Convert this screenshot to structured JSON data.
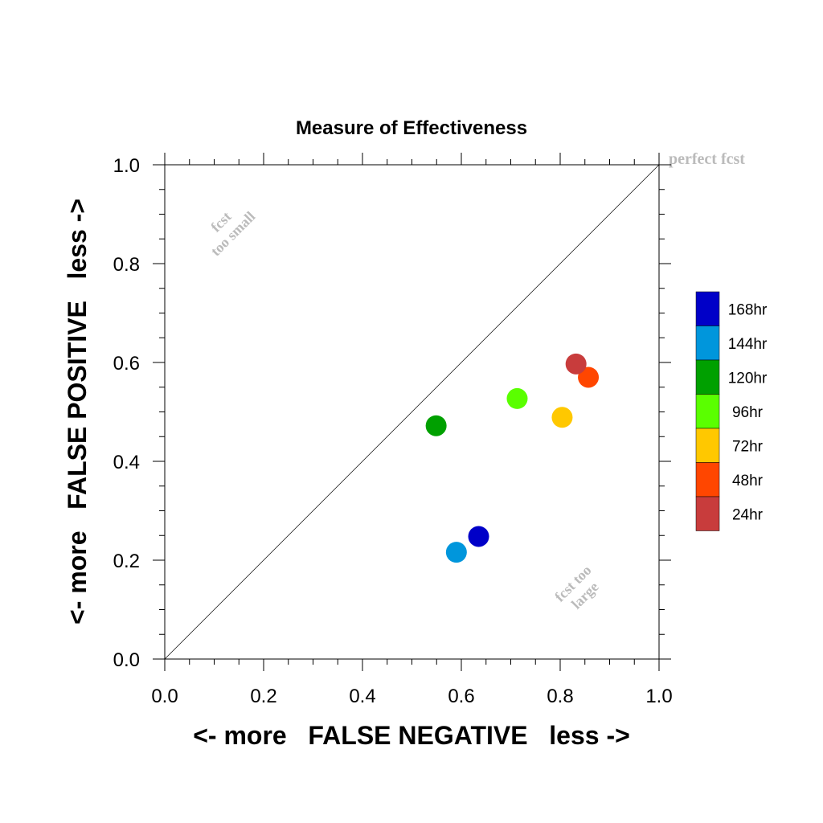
{
  "chart_data": {
    "type": "scatter",
    "title": "Measure of Effectiveness",
    "xlabel": "<- more   FALSE NEGATIVE   less ->",
    "ylabel": "<- more   FALSE POSITIVE   less ->",
    "xlim": [
      0.0,
      1.0
    ],
    "ylim": [
      0.0,
      1.0
    ],
    "x_ticks": [
      "0.0",
      "0.2",
      "0.4",
      "0.6",
      "0.8",
      "1.0"
    ],
    "y_ticks": [
      "0.0",
      "0.2",
      "0.4",
      "0.6",
      "0.8",
      "1.0"
    ],
    "grid": false,
    "diagonal_reference": true,
    "annotations": {
      "perfect": "perfect fcst",
      "too_small_1": "fcst",
      "too_small_2": "too small",
      "too_large_1": "fcst too",
      "too_large_2": "large"
    },
    "legend_position": "right",
    "series": [
      {
        "name": "168hr",
        "color": "#0000c8",
        "x": 0.635,
        "y": 0.248
      },
      {
        "name": "144hr",
        "color": "#0096dc",
        "x": 0.59,
        "y": 0.216
      },
      {
        "name": "120hr",
        "color": "#00a000",
        "x": 0.549,
        "y": 0.472
      },
      {
        "name": "96hr",
        "color": "#5aff00",
        "x": 0.713,
        "y": 0.527
      },
      {
        "name": "72hr",
        "color": "#ffc800",
        "x": 0.804,
        "y": 0.489
      },
      {
        "name": "48hr",
        "color": "#ff4600",
        "x": 0.857,
        "y": 0.57
      },
      {
        "name": "24hr",
        "color": "#c83c3c",
        "x": 0.832,
        "y": 0.597
      }
    ]
  }
}
